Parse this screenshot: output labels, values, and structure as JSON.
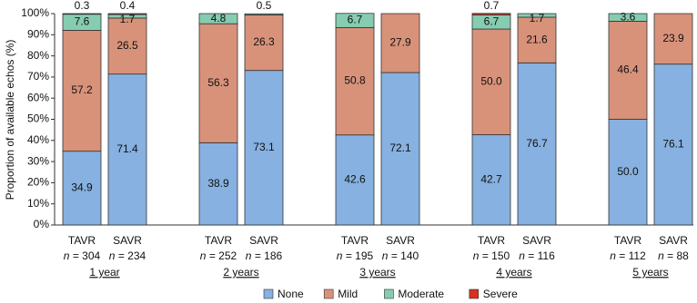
{
  "chart_data": {
    "type": "stacked_bar",
    "y_label": "Proportion of available echos (%)",
    "categories": [
      "TAVR",
      "SAVR",
      "TAVR",
      "SAVR",
      "TAVR",
      "SAVR",
      "TAVR",
      "SAVR",
      "TAVR",
      "SAVR"
    ],
    "n_labels": [
      "n = 304",
      "n = 234",
      "n = 252",
      "n = 186",
      "n = 195",
      "n = 140",
      "n = 150",
      "n = 116",
      "n = 112",
      "n = 88"
    ],
    "groups": [
      "1 year",
      "2 years",
      "3 years",
      "4 years",
      "5 years"
    ],
    "series": [
      {
        "name": "None",
        "color": "#86b1e0",
        "values": [
          34.9,
          71.4,
          38.9,
          73.1,
          42.6,
          72.1,
          42.7,
          76.7,
          50.0,
          76.1
        ],
        "value_labels": [
          "34.9",
          "71.4",
          "38.9",
          "73.1",
          "42.6",
          "72.1",
          "42.7",
          "76.7",
          "50.0",
          "76.1"
        ]
      },
      {
        "name": "Mild",
        "color": "#d8927a",
        "values": [
          57.2,
          26.5,
          56.3,
          26.3,
          50.8,
          27.9,
          50.0,
          21.6,
          46.4,
          23.9
        ],
        "value_labels": [
          "57.2",
          "26.5",
          "56.3",
          "26.3",
          "50.8",
          "27.9",
          "50.0",
          "21.6",
          "46.4",
          "23.9"
        ]
      },
      {
        "name": "Moderate",
        "color": "#86ccb1",
        "values": [
          7.6,
          1.7,
          4.8,
          0.5,
          6.7,
          null,
          6.7,
          1.7,
          3.6,
          null
        ],
        "value_labels": [
          "7.6",
          "1.7",
          "4.8",
          "0.5",
          "6.7",
          null,
          "6.7",
          "1.7",
          "3.6",
          null
        ]
      },
      {
        "name": "Severe",
        "color": "#d7301f",
        "values": [
          0.3,
          0.4,
          null,
          null,
          null,
          null,
          0.7,
          null,
          null,
          null
        ],
        "value_labels": [
          "0.3",
          "0.4",
          null,
          null,
          null,
          null,
          "0.7",
          null,
          null,
          null
        ]
      }
    ],
    "ylim": [
      0,
      100
    ],
    "yticks": [
      {
        "value": 0,
        "label": "0%"
      },
      {
        "value": 10,
        "label": "10%"
      },
      {
        "value": 20,
        "label": "20%"
      },
      {
        "value": 30,
        "label": "30%"
      },
      {
        "value": 40,
        "label": "40%"
      },
      {
        "value": 50,
        "label": "50%"
      },
      {
        "value": 60,
        "label": "60%"
      },
      {
        "value": 70,
        "label": "70%"
      },
      {
        "value": 80,
        "label": "80%"
      },
      {
        "value": 90,
        "label": "90%"
      },
      {
        "value": 100,
        "label": "100%"
      }
    ],
    "legend": "bottom"
  }
}
